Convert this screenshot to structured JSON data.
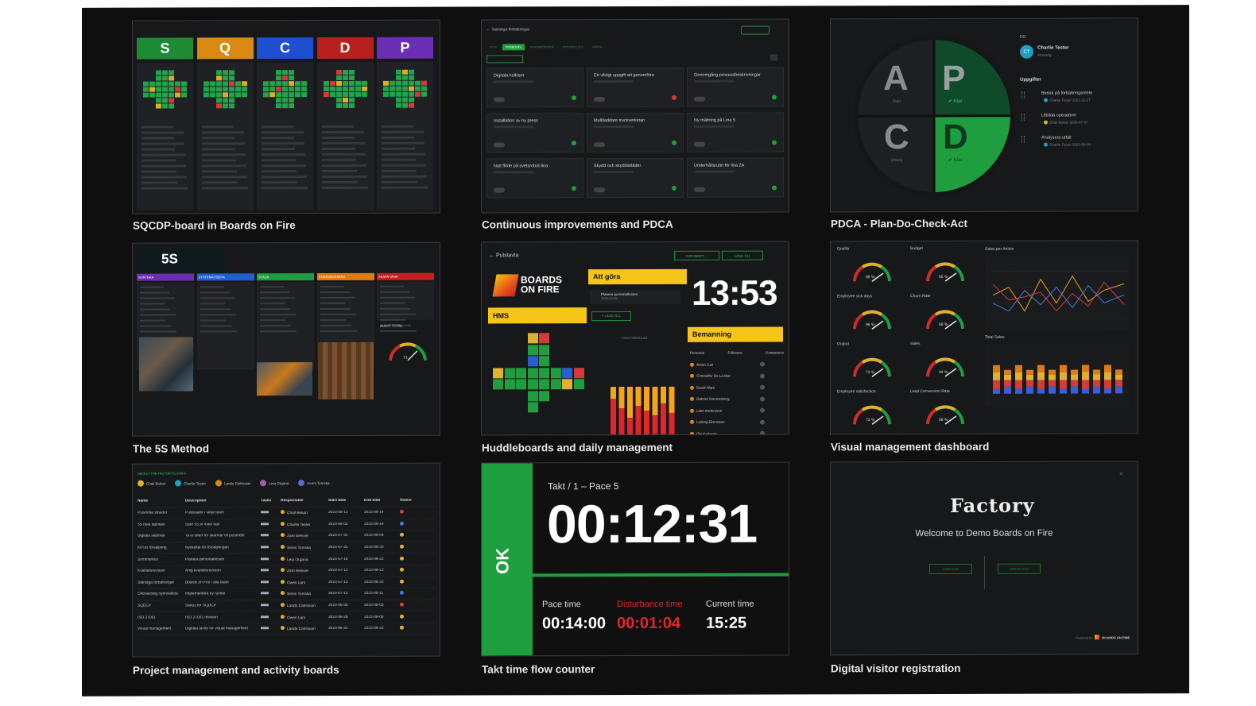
{
  "captions": {
    "sqcdp": "SQCDP-board in Boards on Fire",
    "ci": "Continuous improvements and PDCA",
    "pdca": "PDCA - Plan-Do-Check-Act",
    "fives": "The 5S Method",
    "huddle": "Huddleboards and daily management",
    "vmd": "Visual management dashboard",
    "pm": "Project management and activity boards",
    "takt": "Takt time flow counter",
    "visitor": "Digital visitor registration"
  },
  "sqcdp": {
    "headers": [
      {
        "letter": "S",
        "color": "#1e8b34"
      },
      {
        "letter": "Q",
        "color": "#d88a12"
      },
      {
        "letter": "C",
        "color": "#1d4fd0"
      },
      {
        "letter": "D",
        "color": "#b8201e"
      },
      {
        "letter": "P",
        "color": "#6b2fb5"
      }
    ]
  },
  "ci": {
    "breadcrumb": "Ständiga förbättringar",
    "tabs": [
      "PLAN",
      "PROBLEMS",
      "GENOMFÖRANDE",
      "KONTROLLERA",
      "AGERA"
    ],
    "cards": [
      "Digitala kalkiser",
      "Ett viktigt uppgift att genomföra",
      "Genomgång processbeskrivningar",
      "Installation av ny press",
      "Multiladdare truckverkstan",
      "Ny mätning på Lina 5",
      "Nytt flöde på svetsrobot-lina",
      "Skydd och skyddskläder",
      "Underhållsrutin för lina 2A"
    ]
  },
  "pdca": {
    "letters": {
      "a": "A",
      "p": "P",
      "c": "C",
      "d": "D"
    },
    "plan_label": "Plan",
    "check_label": "Check",
    "done_p": "✔ Klar",
    "done_d": "✔ Klar",
    "section_do": "DO",
    "assignee": {
      "initials": "CT",
      "name": "Charlie Tester",
      "role": "Ansvarig"
    },
    "tasks_title": "Uppgifter",
    "tasks": [
      {
        "title": "Beslut på förbättringsmöte",
        "meta": "Charlie Tester   2021-11-17"
      },
      {
        "title": "Utbilda operatörer",
        "meta": "Chall Bekan   2023-07-07"
      },
      {
        "title": "Analysera utfall",
        "meta": "Charlie Tester   2023-09-08"
      }
    ]
  },
  "fives": {
    "title": "5S",
    "columns": [
      {
        "label": "SORTERA",
        "color": "#6a2fb0"
      },
      {
        "label": "SYSTEMATISERA",
        "color": "#1f5fd4"
      },
      {
        "label": "STÄDA",
        "color": "#1f9e3f"
      },
      {
        "label": "STANDARDISERA",
        "color": "#e07a12"
      },
      {
        "label": "SKAPA VANA",
        "color": "#c41f1f"
      }
    ],
    "audit_label": "AUDIT TOTAL",
    "audit_value": 73
  },
  "huddle": {
    "breadcrumb": "Pulstavla",
    "buttons": [
      "TOPONMITT: ...",
      "LÄGG TILL"
    ],
    "logo_line1": "BOARDS",
    "logo_line2": "ON FIRE",
    "hms_label": "HMS",
    "todo_label": "Att göra",
    "todo_item": "Planera personalfesten",
    "todo_date": "2023-10-05",
    "add_button": "+ LÄGG TILL",
    "chart_title": "VISA FORMULAR",
    "clock": "13:53",
    "staffing_label": "Bemanning",
    "staff_headers": [
      "Personal",
      "Frånvaro",
      "Kompetens"
    ],
    "staff": [
      "Anton Juel",
      "Christoffer De La Mot",
      "David Wam",
      "Gabriel Svennerberg",
      "Liam Andersson",
      "Ludwig Ekenstam",
      "Ola Karlsson"
    ],
    "bars": [
      {
        "red": 0.75,
        "yellow": 0.25
      },
      {
        "red": 0.55,
        "yellow": 0.45
      },
      {
        "red": 0.35,
        "yellow": 0.65
      },
      {
        "red": 0.6,
        "yellow": 0.4
      },
      {
        "red": 0.5,
        "yellow": 0.5
      },
      {
        "red": 0.4,
        "yellow": 0.6
      },
      {
        "red": 0.65,
        "yellow": 0.35
      },
      {
        "red": 0.45,
        "yellow": 0.55
      }
    ]
  },
  "vmd": {
    "gauges": [
      {
        "label": "Quality",
        "value": "88 %"
      },
      {
        "label": "Budget",
        "value": "85 %"
      },
      {
        "label": "Employee sick days",
        "value": "96 %"
      },
      {
        "label": "Churn Rate",
        "value": "88 %"
      },
      {
        "label": "Output",
        "value": "73 %"
      },
      {
        "label": "Sales",
        "value": "44 %"
      },
      {
        "label": "Employee satisfaction",
        "value": "74 %"
      },
      {
        "label": "Lead Conversion Rate",
        "value": "68 %"
      }
    ],
    "line_title": "Sales per Article",
    "bar_title": "Total Sales"
  },
  "pm": {
    "header": "SELECT THE FACTORY'S STAFF",
    "people": [
      "Chall Bekan",
      "Charlie Tester",
      "Lando Calrissian",
      "Leia Organa",
      "Senni Tomska"
    ],
    "columns": [
      "Name",
      "Description",
      "Tasks",
      "Responsible",
      "Start date",
      "End date",
      "Status"
    ],
    "rows": [
      {
        "name": "Pulsmöte struktur",
        "desc": "Pulsboaler i varje team",
        "resp": "Chall Bekan",
        "start": "2023-08-13",
        "end": "2023-09-14",
        "status": "#e03a3a"
      },
      {
        "name": "5S hela fabriken",
        "desc": "Start 5S in main hall",
        "resp": "Charlie Tester",
        "start": "2023-08-02",
        "end": "2023-09-14",
        "status": "#3a7be0"
      },
      {
        "name": "Digitala skärmar",
        "desc": "Ta in offert för skärmar till pulsmöte",
        "resp": "Zam Wessel",
        "start": "2023-07-25",
        "end": "2023-09-04",
        "status": "#e0b030"
      },
      {
        "name": "KPI:er försäljning",
        "desc": "Nyckeltal för försäljningen",
        "resp": "Senni Tomska",
        "start": "2023-07-25",
        "end": "2023-09-30",
        "status": "#e0b030"
      },
      {
        "name": "Sommarfest",
        "desc": "Planera personalfesten",
        "resp": "Leia Organa",
        "start": "2023-07-16",
        "end": "2023-08-22",
        "status": "#e0b030"
      },
      {
        "name": "Kvalitetsrevision",
        "desc": "Årlig kvalitetsrevision",
        "resp": "Zam Wessel",
        "start": "2023-07-13",
        "end": "2023-08-13",
        "status": "#e0b030"
      },
      {
        "name": "Ständiga förbättringar",
        "desc": "Boards on Fire i alla team",
        "resp": "Owen Lars",
        "start": "2023-07-13",
        "end": "2023-08-23",
        "status": "#e0b030"
      },
      {
        "name": "Onboarding nyanställda",
        "desc": "Implementera ny rutiner",
        "resp": "Senni Tomska",
        "start": "2023-07-12",
        "end": "2023-08-11",
        "status": "#3a7be0"
      },
      {
        "name": "SQDCP",
        "desc": "Status för SQDCP",
        "resp": "Lando Calrissian",
        "start": "2023-06-30",
        "end": "2023-09-03",
        "status": "#e03a3a"
      },
      {
        "name": "ISO 27001",
        "desc": "ISO 27001 revision",
        "resp": "Owen Lars",
        "start": "2023-06-28",
        "end": "2023-09-06",
        "status": "#e0b030"
      },
      {
        "name": "Visual management",
        "desc": "Digitala tavlor för visual management",
        "resp": "Lando Calrissian",
        "start": "2023-06-25",
        "end": "2023-08-23",
        "status": "#e0b030"
      }
    ]
  },
  "takt": {
    "ok": "OK",
    "header": "Takt / 1 – Pace 5",
    "timer": "00:12:31",
    "progress": 1.0,
    "pace_label": "Pace time",
    "pace_value": "00:14:00",
    "disturbance_label": "Disturbance time",
    "disturbance_value": "00:01:04",
    "current_label": "Current time",
    "current_value": "15:25"
  },
  "visitor": {
    "logo": "Factory",
    "welcome": "Welcome to Demo Boards on Fire",
    "btn_in": "CHECK IN",
    "btn_out": "CHECK OUT",
    "powered": "Powered by",
    "brand": "BOARDS ON FIRE",
    "close": "×"
  }
}
